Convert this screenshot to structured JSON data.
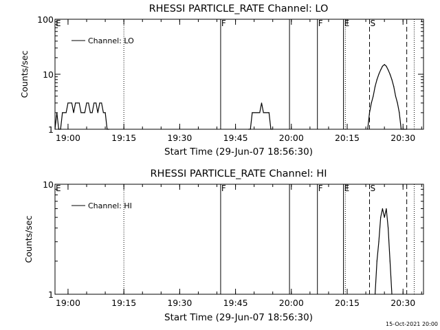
{
  "footer": {
    "date_stamp": "15-Oct-2021 20:00"
  },
  "chart_data": [
    {
      "type": "line",
      "title": "RHESSI PARTICLE_RATE Channel: LO",
      "xlabel": "Start Time (29-Jun-07 18:56:30)",
      "ylabel": "Counts/sec",
      "y_scale": "log",
      "xlim": [
        "18:56:30",
        "20:35:30"
      ],
      "ylim": [
        1,
        100
      ],
      "x_ticks": [
        "19:00",
        "19:15",
        "19:30",
        "19:45",
        "20:00",
        "20:15",
        "20:30"
      ],
      "y_ticks": [
        "1",
        "10",
        "100"
      ],
      "legend": {
        "position": "top-left",
        "entries": [
          "Channel: LO"
        ]
      },
      "series": [
        {
          "name": "Channel: LO",
          "x": [
            "18:56:30",
            "18:57:00",
            "18:57:30",
            "18:58:00",
            "18:58:30",
            "18:59:00",
            "18:59:30",
            "19:00:00",
            "19:00:30",
            "19:01:00",
            "19:01:30",
            "19:02:00",
            "19:02:30",
            "19:03:00",
            "19:03:30",
            "19:04:00",
            "19:04:30",
            "19:05:00",
            "19:05:30",
            "19:06:00",
            "19:06:30",
            "19:07:00",
            "19:07:30",
            "19:08:00",
            "19:08:30",
            "19:09:00",
            "19:09:30",
            "19:10:00",
            "19:10:30",
            "19:11:00",
            "19:48:30",
            "19:49:00",
            "19:49:30",
            "19:50:00",
            "19:50:30",
            "19:51:00",
            "19:51:30",
            "19:52:00",
            "19:52:30",
            "19:53:00",
            "19:53:30",
            "19:54:00",
            "19:54:30",
            "19:55:00",
            "20:20:30",
            "20:21:00",
            "20:21:30",
            "20:22:00",
            "20:22:30",
            "20:23:00",
            "20:23:30",
            "20:24:00",
            "20:24:30",
            "20:25:00",
            "20:25:30",
            "20:26:00",
            "20:26:30",
            "20:27:00",
            "20:27:30",
            "20:28:00",
            "20:28:30",
            "20:29:00",
            "20:29:30",
            "20:30:00",
            "20:30:30",
            "20:31:00"
          ],
          "values": [
            1,
            2,
            1,
            1,
            2,
            2,
            2,
            3,
            3,
            3,
            2,
            3,
            3,
            3,
            2,
            2,
            2,
            3,
            3,
            2,
            2,
            3,
            3,
            2,
            3,
            3,
            2,
            2,
            1,
            1,
            1,
            1,
            2,
            2,
            2,
            2,
            2,
            3,
            2,
            2,
            2,
            2,
            1,
            1,
            1,
            2,
            3,
            4,
            6,
            8,
            10,
            12,
            14,
            15,
            14,
            12,
            10,
            8,
            6,
            4,
            3,
            2,
            1,
            1,
            1,
            1
          ]
        }
      ],
      "annotations": [
        {
          "label": "E",
          "x": "18:56:30",
          "style": "none"
        },
        {
          "label": "",
          "x": "19:15:00",
          "style": "dotted"
        },
        {
          "label": "F",
          "x": "19:41:00",
          "style": "solid"
        },
        {
          "label": "",
          "x": "19:59:30",
          "style": "solid"
        },
        {
          "label": "F",
          "x": "20:07:00",
          "style": "solid"
        },
        {
          "label": "E",
          "x": "20:14:00",
          "style": "solid"
        },
        {
          "label": "",
          "x": "20:14:30",
          "style": "dotted"
        },
        {
          "label": "S",
          "x": "20:21:00",
          "style": "dashed"
        },
        {
          "label": "",
          "x": "20:31:00",
          "style": "dashed"
        },
        {
          "label": "",
          "x": "20:33:00",
          "style": "dotted"
        }
      ]
    },
    {
      "type": "line",
      "title": "RHESSI PARTICLE_RATE Channel: HI",
      "xlabel": "Start Time (29-Jun-07 18:56:30)",
      "ylabel": "Counts/sec",
      "y_scale": "log",
      "xlim": [
        "18:56:30",
        "20:35:30"
      ],
      "ylim": [
        1,
        10
      ],
      "x_ticks": [
        "19:00",
        "19:15",
        "19:30",
        "19:45",
        "20:00",
        "20:15",
        "20:30"
      ],
      "y_ticks": [
        "1",
        "10"
      ],
      "legend": {
        "position": "top-left",
        "entries": [
          "Channel: HI"
        ]
      },
      "series": [
        {
          "name": "Channel: HI",
          "x": [
            "20:22:30",
            "20:23:00",
            "20:23:30",
            "20:24:00",
            "20:24:30",
            "20:25:00",
            "20:25:30",
            "20:26:00",
            "20:26:30",
            "20:27:00"
          ],
          "values": [
            1,
            2,
            3,
            5,
            6,
            5,
            6,
            4,
            2,
            1
          ]
        }
      ],
      "annotations": [
        {
          "label": "E",
          "x": "18:56:30",
          "style": "none"
        },
        {
          "label": "",
          "x": "19:15:00",
          "style": "dotted"
        },
        {
          "label": "F",
          "x": "19:41:00",
          "style": "solid"
        },
        {
          "label": "",
          "x": "19:59:30",
          "style": "solid"
        },
        {
          "label": "F",
          "x": "20:07:00",
          "style": "solid"
        },
        {
          "label": "E",
          "x": "20:14:00",
          "style": "solid"
        },
        {
          "label": "",
          "x": "20:14:30",
          "style": "dotted"
        },
        {
          "label": "S",
          "x": "20:21:00",
          "style": "dashed"
        },
        {
          "label": "",
          "x": "20:31:00",
          "style": "dashed"
        },
        {
          "label": "",
          "x": "20:33:00",
          "style": "dotted"
        }
      ]
    }
  ]
}
